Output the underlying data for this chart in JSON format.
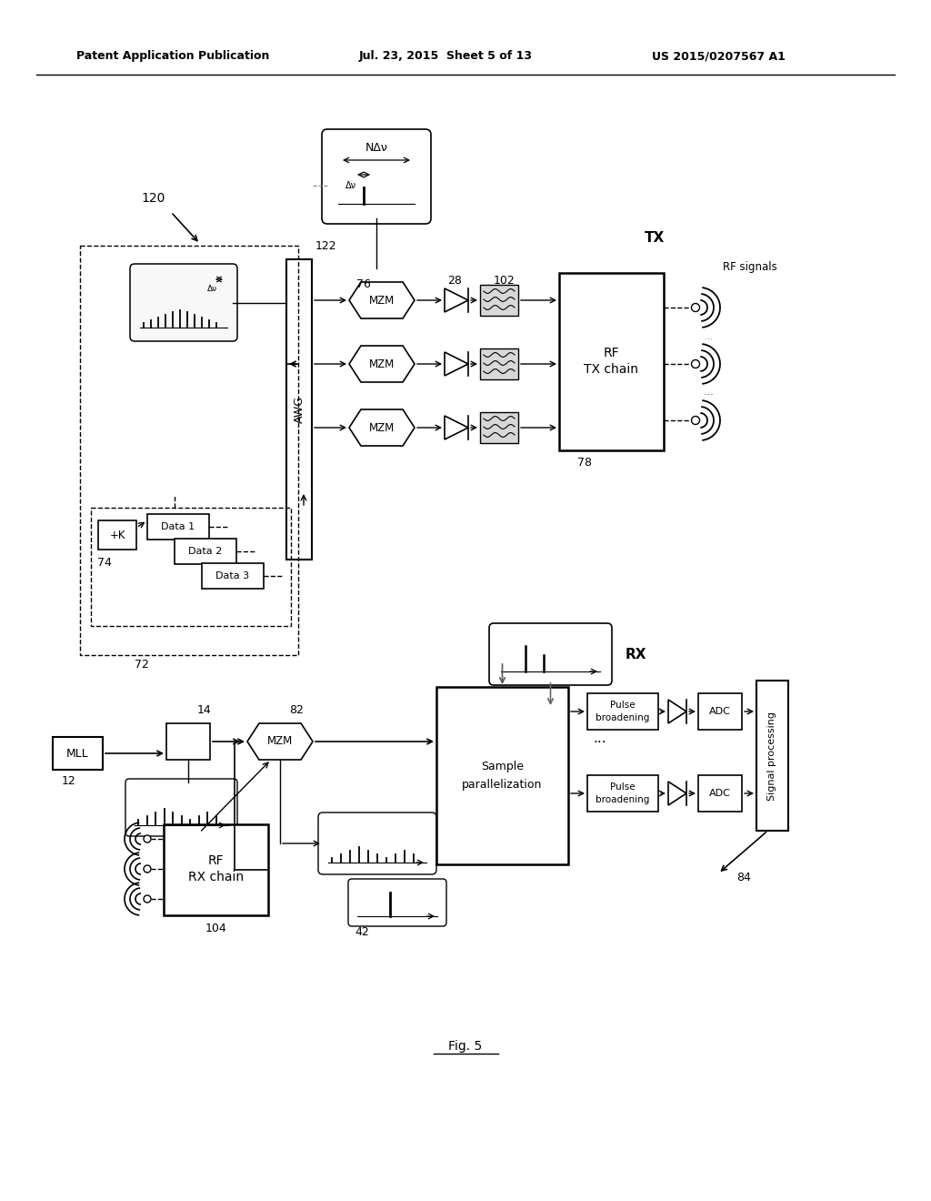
{
  "title_left": "Patent Application Publication",
  "title_mid": "Jul. 23, 2015  Sheet 5 of 13",
  "title_right": "US 2015/0207567 A1",
  "fig_label": "Fig. 5",
  "background": "#ffffff"
}
